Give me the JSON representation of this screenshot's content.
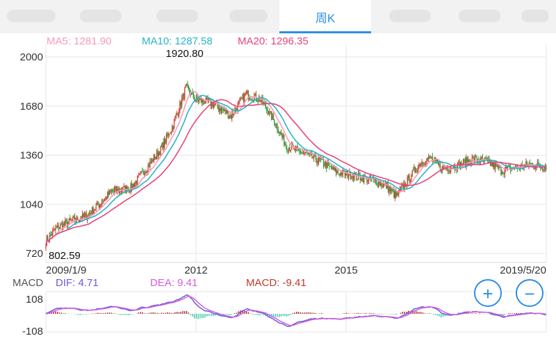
{
  "tabs": {
    "active_label": "周K"
  },
  "legend": {
    "ma5": {
      "label": "MA5: 1281.90",
      "color": "#f59bbd"
    },
    "ma10": {
      "label": "MA10: 1287.58",
      "color": "#27b5c9"
    },
    "ma20": {
      "label": "MA20: 1296.35",
      "color": "#e8447a"
    }
  },
  "macd_legend": {
    "title": "MACD",
    "dif": {
      "label": "DIF: 4.71",
      "color": "#6b5bd6"
    },
    "dea": {
      "label": "DEA: 9.41",
      "color": "#d45ce0"
    },
    "macd": {
      "label": "MACD: -9.41",
      "color": "#c0392b"
    }
  },
  "zoom": {
    "zoom_in": "+",
    "zoom_out": "−"
  },
  "colors": {
    "up": "#d43a2c",
    "down": "#2f9e3a",
    "grid": "#e6e6e6",
    "text": "#333333",
    "macd_up": "#a52a1f",
    "macd_down": "#3cc6a4"
  },
  "chart_data": [
    {
      "type": "candlestick",
      "title": "",
      "ylim": [
        720,
        2000
      ],
      "y_ticks": [
        "2000",
        "1680",
        "1360",
        "1040",
        "720"
      ],
      "y_tick_values": [
        2000,
        1680,
        1360,
        1040,
        720
      ],
      "x_ticks": [
        "2009/1/9",
        "2012",
        "2015",
        "2019/5/20"
      ],
      "x_tick_positions": [
        0,
        0.3,
        0.6,
        1.0
      ],
      "max_label": "1920.80",
      "min_label": "802.59",
      "close_anchors": [
        [
          0,
          800
        ],
        [
          0.02,
          880
        ],
        [
          0.05,
          930
        ],
        [
          0.08,
          960
        ],
        [
          0.1,
          1020
        ],
        [
          0.13,
          1120
        ],
        [
          0.17,
          1150
        ],
        [
          0.2,
          1270
        ],
        [
          0.23,
          1400
        ],
        [
          0.255,
          1560
        ],
        [
          0.28,
          1800
        ],
        [
          0.3,
          1720
        ],
        [
          0.33,
          1700
        ],
        [
          0.37,
          1620
        ],
        [
          0.4,
          1760
        ],
        [
          0.43,
          1720
        ],
        [
          0.46,
          1560
        ],
        [
          0.48,
          1420
        ],
        [
          0.51,
          1380
        ],
        [
          0.55,
          1320
        ],
        [
          0.58,
          1250
        ],
        [
          0.61,
          1230
        ],
        [
          0.65,
          1200
        ],
        [
          0.68,
          1160
        ],
        [
          0.7,
          1090
        ],
        [
          0.72,
          1180
        ],
        [
          0.75,
          1320
        ],
        [
          0.77,
          1340
        ],
        [
          0.79,
          1270
        ],
        [
          0.82,
          1290
        ],
        [
          0.85,
          1330
        ],
        [
          0.88,
          1320
        ],
        [
          0.91,
          1260
        ],
        [
          0.94,
          1280
        ],
        [
          0.97,
          1300
        ],
        [
          1.0,
          1285
        ]
      ],
      "ma_series": [
        {
          "name": "MA5",
          "color": "#f59bbd",
          "value": 1281.9
        },
        {
          "name": "MA10",
          "color": "#27b5c9",
          "value": 1287.58
        },
        {
          "name": "MA20",
          "color": "#e8447a",
          "value": 1296.35
        }
      ]
    },
    {
      "type": "macd",
      "title": "MACD",
      "ylim": [
        -108,
        108
      ],
      "y_ticks": [
        "108",
        "-108"
      ],
      "y_tick_values": [
        108,
        -108
      ],
      "dif": 4.71,
      "dea": 9.41,
      "macd": -9.41
    }
  ]
}
